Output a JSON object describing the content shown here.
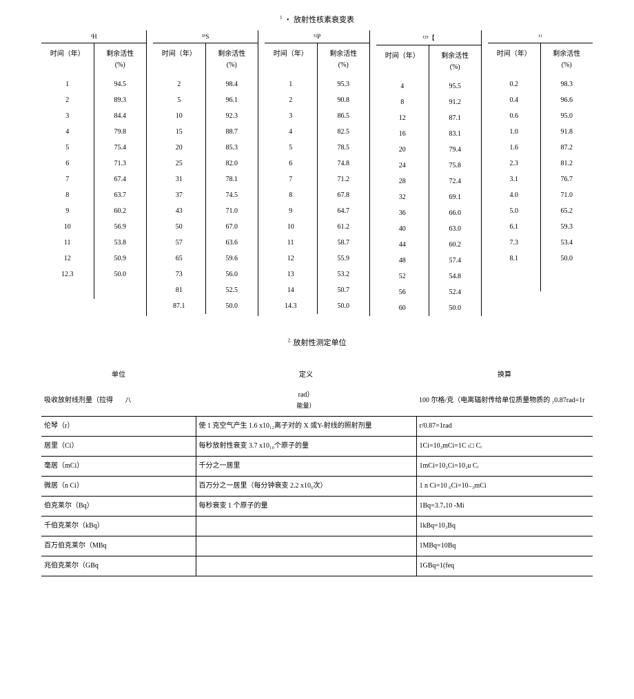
{
  "title1_sup": "1",
  "title1_bullet": "・",
  "title1_text": "放射性核素衰变表",
  "isotopes": [
    {
      "name": "³H",
      "time_header": "时间（年）",
      "activity_header_l1": "剩余活性",
      "activity_header_l2": "(%)",
      "rows": [
        {
          "t": "1",
          "v": "94.5"
        },
        {
          "t": "2",
          "v": "89.3"
        },
        {
          "t": "3",
          "v": "84.4"
        },
        {
          "t": "4",
          "v": "79.8"
        },
        {
          "t": "5",
          "v": "75.4"
        },
        {
          "t": "6",
          "v": "71.3"
        },
        {
          "t": "7",
          "v": "67.4"
        },
        {
          "t": "8",
          "v": "63.7"
        },
        {
          "t": "9",
          "v": "60.2"
        },
        {
          "t": "10",
          "v": "56.9"
        },
        {
          "t": "11",
          "v": "53.8"
        },
        {
          "t": "12",
          "v": "50.9"
        },
        {
          "t": "12.3",
          "v": "50.0"
        },
        {
          "t": "",
          "v": ""
        },
        {
          "t": "",
          "v": ""
        }
      ]
    },
    {
      "name": "³⁵S",
      "time_header": "时间（年）",
      "activity_header_l1": "剩余活性",
      "activity_header_l2": "(%)",
      "rows": [
        {
          "t": "2",
          "v": "98.4"
        },
        {
          "t": "5",
          "v": "96.1"
        },
        {
          "t": "10",
          "v": "92.3"
        },
        {
          "t": "15",
          "v": "88.7"
        },
        {
          "t": "20",
          "v": "85.3"
        },
        {
          "t": "25",
          "v": "82.0"
        },
        {
          "t": "31",
          "v": "78.1"
        },
        {
          "t": "37",
          "v": "74.5"
        },
        {
          "t": "43",
          "v": "71.0"
        },
        {
          "t": "50",
          "v": "67.0"
        },
        {
          "t": "57",
          "v": "63.6"
        },
        {
          "t": "65",
          "v": "59.6"
        },
        {
          "t": "73",
          "v": "56.0"
        },
        {
          "t": "81",
          "v": "52.5"
        },
        {
          "t": "87.1",
          "v": "50.0"
        }
      ]
    },
    {
      "name": "³²P",
      "time_header": "时间（年）",
      "activity_header_l1": "剩余活性",
      "activity_header_l2": "(%)",
      "rows": [
        {
          "t": "1",
          "v": "95.3"
        },
        {
          "t": "2",
          "v": "90.8"
        },
        {
          "t": "3",
          "v": "86.5"
        },
        {
          "t": "4",
          "v": "82.5"
        },
        {
          "t": "5",
          "v": "78.5"
        },
        {
          "t": "6",
          "v": "74.8"
        },
        {
          "t": "7",
          "v": "71.2"
        },
        {
          "t": "8",
          "v": "67.8"
        },
        {
          "t": "9",
          "v": "64.7"
        },
        {
          "t": "10",
          "v": "61.2"
        },
        {
          "t": "11",
          "v": "58.7"
        },
        {
          "t": "12",
          "v": "55.9"
        },
        {
          "t": "13",
          "v": "53.2"
        },
        {
          "t": "14",
          "v": "50.7"
        },
        {
          "t": "14.3",
          "v": "50.0"
        }
      ]
    },
    {
      "name": "¹²⁵【",
      "time_header": "时间（年）",
      "activity_header_l1": "剩余活性",
      "activity_header_l2": "(%)",
      "rows": [
        {
          "t": "4",
          "v": "95.5"
        },
        {
          "t": "8",
          "v": "91.2"
        },
        {
          "t": "12",
          "v": "87.1"
        },
        {
          "t": "16",
          "v": "83.1"
        },
        {
          "t": "20",
          "v": "79.4"
        },
        {
          "t": "24",
          "v": "75.8"
        },
        {
          "t": "28",
          "v": "72.4"
        },
        {
          "t": "32",
          "v": "69.1"
        },
        {
          "t": "36",
          "v": "66.0"
        },
        {
          "t": "40",
          "v": "63.0"
        },
        {
          "t": "44",
          "v": "60.2"
        },
        {
          "t": "48",
          "v": "57.4"
        },
        {
          "t": "52",
          "v": "54.8"
        },
        {
          "t": "56",
          "v": "52.4"
        },
        {
          "t": "60",
          "v": "50.0"
        }
      ]
    },
    {
      "name": "¹¹",
      "time_header": "时间（年）",
      "activity_header_l1": "剩余活性",
      "activity_header_l2": "(%)",
      "rows": [
        {
          "t": "0.2",
          "v": "98.3"
        },
        {
          "t": "0.4",
          "v": "96.6"
        },
        {
          "t": "0.6",
          "v": "95.0"
        },
        {
          "t": "1.0",
          "v": "91.8"
        },
        {
          "t": "1.6",
          "v": "87.2"
        },
        {
          "t": "2.3",
          "v": "81.2"
        },
        {
          "t": "3.1",
          "v": "76.7"
        },
        {
          "t": "4.0",
          "v": "71.0"
        },
        {
          "t": "5.0",
          "v": "65.2"
        },
        {
          "t": "6.1",
          "v": "59.3"
        },
        {
          "t": "7.3",
          "v": "53.4"
        },
        {
          "t": "8.1",
          "v": "50.0"
        },
        {
          "t": "",
          "v": ""
        },
        {
          "t": "",
          "v": ""
        },
        {
          "t": "",
          "v": ""
        }
      ]
    }
  ],
  "title2_sup": "2.",
  "title2_text": "放射性测定单位",
  "table2_headers": {
    "unit": "单位",
    "def": "定义",
    "conv": "换算"
  },
  "table2_rows": [
    {
      "unit": "吸收放射线剂量（拉得",
      "def_side": "八",
      "def_main": "rad）",
      "def_sub": "能量）",
      "conv": "100 尔格/克（电离辐射传给单位质量物质的 ₁0.87rad=1r"
    },
    {
      "unit": "伦琴（r）",
      "def": "使 1 克空气产生 1.6 x10₁₂离子对的 X 或Y-射线的照射剂量",
      "conv": "r/0.87=1rad"
    },
    {
      "unit": "居里（Ci）",
      "def": "每秒放射性衰变 3.7 x10₁₀个原子的量",
      "conv": "1Ci=10₃mCi=1C ₜ□ Cᵢ"
    },
    {
      "unit": "毫居（mCi）",
      "def": "千分之一居里",
      "conv": "1mCi=10₃Ci=10₃u Cᵢ"
    },
    {
      "unit": "微居（n Ci）",
      "def": "百万分之一居里（每分钟衰变 2.2 x10₆次）",
      "conv": "1 n Ci=10 ₆Ci=10₋₃mCi"
    },
    {
      "unit": "伯克莱尔（Bq）",
      "def": "每秒衰变 1 个原子的量",
      "conv": "1Bq=3.7ₓ10 -Mi"
    },
    {
      "unit": "千伯克莱尔（kBq）",
      "def": "",
      "conv": "1kBq=10₃Bq"
    },
    {
      "unit": "百万伯克莱尔（MBq",
      "def": "",
      "conv": "1MBq=10Bq"
    },
    {
      "unit": "兆伯克莱尔（GBq",
      "def": "",
      "conv": "1GBq=1(feq"
    }
  ]
}
